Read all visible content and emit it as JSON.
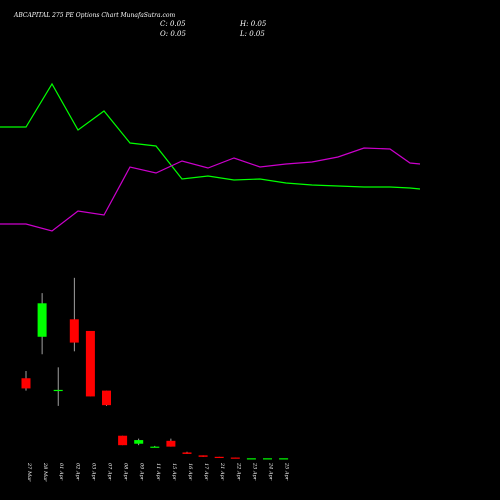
{
  "chart_data": {
    "type": "candlestick",
    "title": "ABCAPITAL 275 PE Options Chart MunafaSutra.com",
    "ohlc_readout": {
      "C": "C: 0.05",
      "H": "H: 0.05",
      "O": "O: 0.05",
      "L": "L: 0.05"
    },
    "categories": [
      "27 Mar",
      "28 Mar",
      "01 Apr",
      "02 Apr",
      "03 Apr",
      "07 Apr",
      "08 Apr",
      "09 Apr",
      "11 Apr",
      "15 Apr",
      "16 Apr",
      "17 Apr",
      "21 Apr",
      "22 Apr",
      "23 Apr",
      "24 Apr",
      "25 Apr"
    ],
    "candles": [
      {
        "x": "27 Mar",
        "open": 5.55,
        "high": 6.05,
        "low": 4.7,
        "close": 4.85
      },
      {
        "x": "28 Mar",
        "open": 8.4,
        "high": 11.4,
        "low": 7.2,
        "close": 10.7
      },
      {
        "x": "01 Apr",
        "open": 4.75,
        "high": 6.3,
        "low": 3.65,
        "close": 4.75
      },
      {
        "x": "02 Apr",
        "open": 9.6,
        "high": 12.45,
        "low": 7.4,
        "close": 8.0
      },
      {
        "x": "03 Apr",
        "open": 8.8,
        "high": 8.8,
        "low": 4.3,
        "close": 4.3
      },
      {
        "x": "07 Apr",
        "open": 4.7,
        "high": 4.7,
        "low": 3.65,
        "close": 3.7
      },
      {
        "x": "08 Apr",
        "open": 1.6,
        "high": 1.6,
        "low": 0.95,
        "close": 0.95
      },
      {
        "x": "09 Apr",
        "open": 1.05,
        "high": 1.4,
        "low": 0.95,
        "close": 1.3
      },
      {
        "x": "11 Apr",
        "open": 0.8,
        "high": 0.9,
        "low": 0.8,
        "close": 0.85
      },
      {
        "x": "15 Apr",
        "open": 1.25,
        "high": 1.4,
        "low": 0.85,
        "close": 0.85
      },
      {
        "x": "16 Apr",
        "open": 0.45,
        "high": 0.5,
        "low": 0.35,
        "close": 0.35
      },
      {
        "x": "17 Apr",
        "open": 0.25,
        "high": 0.25,
        "low": 0.15,
        "close": 0.15
      },
      {
        "x": "21 Apr",
        "open": 0.15,
        "high": 0.15,
        "low": 0.1,
        "close": 0.1
      },
      {
        "x": "22 Apr",
        "open": 0.1,
        "high": 0.1,
        "low": 0.05,
        "close": 0.05
      },
      {
        "x": "23 Apr",
        "open": 0.05,
        "high": 0.05,
        "low": 0.05,
        "close": 0.05
      },
      {
        "x": "24 Apr",
        "open": 0.05,
        "high": 0.05,
        "low": 0.05,
        "close": 0.05
      },
      {
        "x": "25 Apr",
        "open": 0.05,
        "high": 0.05,
        "low": 0.05,
        "close": 0.05
      }
    ],
    "price_ylim": [
      0,
      14.5
    ],
    "overlay_lines": [
      {
        "color": "#00ff00",
        "values": [
          127,
          127,
          84,
          130,
          111,
          143,
          146,
          179,
          176,
          180,
          179,
          183,
          185,
          186,
          187,
          187,
          188,
          189
        ]
      },
      {
        "color": "#cc00cc",
        "values": [
          224,
          224,
          231,
          211,
          215,
          167,
          173,
          161,
          168,
          158,
          167,
          164,
          162,
          157,
          148,
          149,
          163,
          164
        ]
      }
    ],
    "overlay_x": [
      0,
      26,
      52,
      78,
      104,
      130,
      156,
      182,
      208,
      234,
      260,
      286,
      312,
      338,
      364,
      390,
      410,
      420
    ],
    "overlay_ylim": [
      260,
      60
    ],
    "colors": {
      "background": "#000000",
      "up": "#00ff00",
      "down": "#ff0000",
      "text": "#ffffff",
      "wick": "#c8c8c8"
    },
    "grid": false,
    "legend": "none"
  }
}
